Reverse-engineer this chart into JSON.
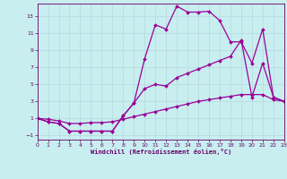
{
  "xlabel": "Windchill (Refroidissement éolien,°C)",
  "bg_color": "#c8eef0",
  "line_color": "#990099",
  "grid_color": "#b8d8dc",
  "xlim": [
    0,
    23
  ],
  "ylim": [
    -1.5,
    14.5
  ],
  "xticks": [
    0,
    1,
    2,
    3,
    4,
    5,
    6,
    7,
    8,
    9,
    10,
    11,
    12,
    13,
    14,
    15,
    16,
    17,
    18,
    19,
    20,
    21,
    22,
    23
  ],
  "yticks": [
    -1,
    1,
    3,
    5,
    7,
    9,
    11,
    13
  ],
  "line1_x": [
    0,
    1,
    2,
    3,
    4,
    5,
    6,
    7,
    8,
    9,
    10,
    11,
    12,
    13,
    14,
    15,
    16,
    17,
    18,
    19,
    20,
    21,
    22,
    23
  ],
  "line1_y": [
    1.0,
    0.6,
    0.4,
    -0.5,
    -0.5,
    -0.5,
    -0.5,
    -0.5,
    1.3,
    2.8,
    8.0,
    12.0,
    11.5,
    14.2,
    13.5,
    13.5,
    13.6,
    12.5,
    10.0,
    10.0,
    7.5,
    11.5,
    3.5,
    3.0
  ],
  "line2_x": [
    0,
    1,
    2,
    3,
    4,
    5,
    6,
    7,
    8,
    9,
    10,
    11,
    12,
    13,
    14,
    15,
    16,
    17,
    18,
    19,
    20,
    21,
    22,
    23
  ],
  "line2_y": [
    1.0,
    0.6,
    0.4,
    -0.5,
    -0.5,
    -0.5,
    -0.5,
    -0.5,
    1.3,
    2.8,
    4.5,
    5.0,
    4.8,
    5.8,
    6.3,
    6.8,
    7.3,
    7.8,
    8.3,
    10.2,
    3.5,
    7.5,
    3.5,
    3.0
  ],
  "line3_x": [
    0,
    1,
    2,
    3,
    4,
    5,
    6,
    7,
    8,
    9,
    10,
    11,
    12,
    13,
    14,
    15,
    16,
    17,
    18,
    19,
    20,
    21,
    22,
    23
  ],
  "line3_y": [
    1.0,
    0.9,
    0.7,
    0.4,
    0.4,
    0.5,
    0.5,
    0.6,
    0.9,
    1.2,
    1.5,
    1.8,
    2.1,
    2.4,
    2.7,
    3.0,
    3.2,
    3.4,
    3.6,
    3.8,
    3.8,
    3.8,
    3.2,
    3.0
  ]
}
